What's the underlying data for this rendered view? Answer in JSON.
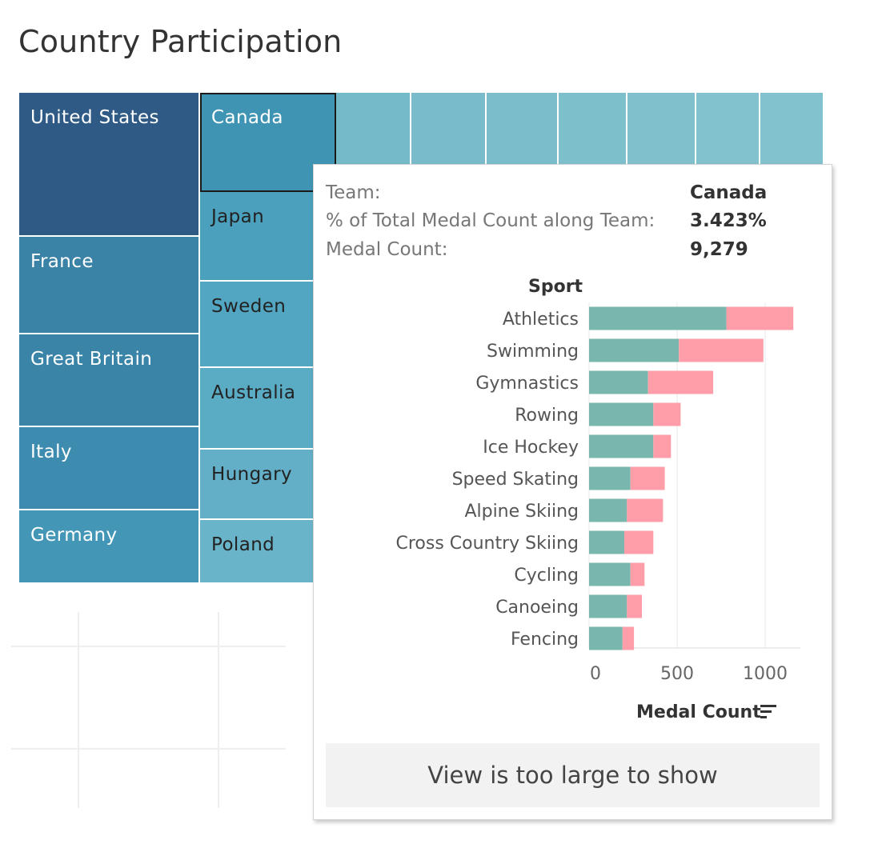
{
  "page": {
    "title": "Country Participation"
  },
  "treemap": {
    "tiles": [
      {
        "name": "United States",
        "color": "#2e5a85"
      },
      {
        "name": "France",
        "color": "#3a82a6"
      },
      {
        "name": "Great Britain",
        "color": "#3a84a8"
      },
      {
        "name": "Italy",
        "color": "#3d8bae"
      },
      {
        "name": "Germany",
        "color": "#4396b6"
      },
      {
        "name": "Canada",
        "color": "#3f94b4",
        "selected": true
      },
      {
        "name": "Japan",
        "color": "#4ba0bd"
      },
      {
        "name": "Sweden",
        "color": "#52a6c1"
      },
      {
        "name": "Australia",
        "color": "#5aabc4"
      },
      {
        "name": "Hungary",
        "color": "#62afc7"
      },
      {
        "name": "Poland",
        "color": "#6ab4ca"
      }
    ],
    "unlabeled_tile_colors": [
      "#75bac9",
      "#79bbca",
      "#7bbdcb",
      "#7ebfcc",
      "#80c0cd",
      "#82c1ce"
    ]
  },
  "tooltip": {
    "team_key": "Team:",
    "team_value": "Canada",
    "pct_key": "% of Total Medal Count along Team:",
    "pct_value": "3.423%",
    "medal_key": "Medal Count:",
    "medal_value": "9,279",
    "sport_header": "Sport",
    "axis_title": "Medal Count",
    "footer": "View is too large to show"
  },
  "chart_data": {
    "type": "bar",
    "orientation": "horizontal",
    "stacked": true,
    "categories": [
      "Athletics",
      "Swimming",
      "Gymnastics",
      "Rowing",
      "Ice Hockey",
      "Speed Skating",
      "Alpine Skiing",
      "Cross Country Skiing",
      "Cycling",
      "Canoeing",
      "Fencing"
    ],
    "series": [
      {
        "values": [
          780,
          510,
          335,
          365,
          365,
          235,
          215,
          200,
          235,
          215,
          190
        ],
        "color": "#79b6ae"
      },
      {
        "values": [
          380,
          480,
          370,
          155,
          100,
          195,
          205,
          165,
          80,
          85,
          65
        ],
        "color": "#ff9ea8"
      }
    ],
    "xlim": [
      0,
      1200
    ],
    "xticks": [
      0,
      500,
      1000
    ],
    "xticklabels": [
      "0",
      "500",
      "1000"
    ],
    "xlabel": "Medal Count",
    "ylabel": "Sport",
    "grid": true
  }
}
